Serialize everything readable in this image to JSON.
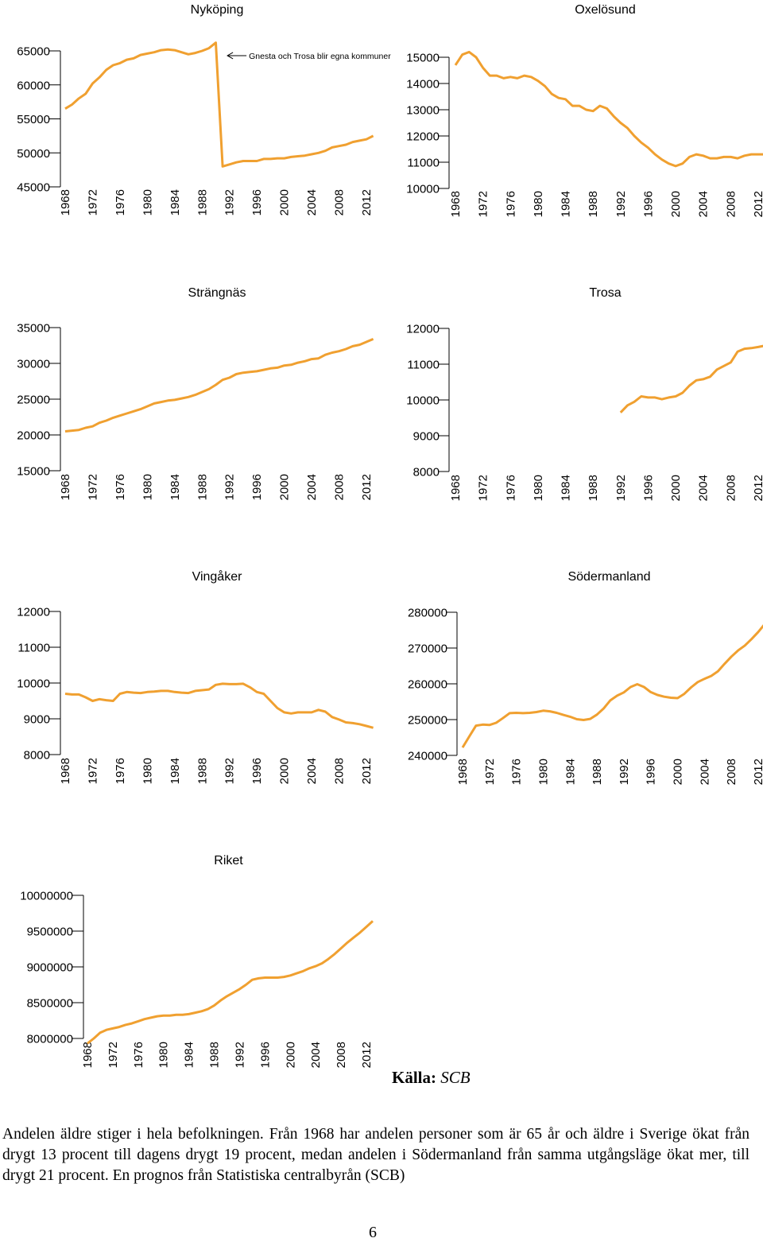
{
  "chart_data": [
    {
      "type": "line",
      "title": "Nyköping",
      "ylim": [
        45000,
        65000
      ],
      "yticks": [
        "65000",
        "60000",
        "55000",
        "50000",
        "45000"
      ],
      "xticks": [
        "1968",
        "1972",
        "1976",
        "1980",
        "1984",
        "1988",
        "1992",
        "1996",
        "2000",
        "2004",
        "2008",
        "2012"
      ],
      "grid": false,
      "color": "#F0A030",
      "annotation": "Gnesta och Trosa blir egna kommuner",
      "x": [
        1968,
        1969,
        1970,
        1971,
        1972,
        1973,
        1974,
        1975,
        1976,
        1977,
        1978,
        1979,
        1980,
        1981,
        1982,
        1983,
        1984,
        1985,
        1986,
        1987,
        1988,
        1989,
        1990,
        1991,
        1992,
        1993,
        1994,
        1995,
        1996,
        1997,
        1998,
        1999,
        2000,
        2001,
        2002,
        2003,
        2004,
        2005,
        2006,
        2007,
        2008,
        2009,
        2010,
        2011,
        2012,
        2013
      ],
      "y": [
        56500,
        57100,
        58000,
        58700,
        60200,
        61100,
        62200,
        62900,
        63200,
        63700,
        63900,
        64400,
        64600,
        64800,
        65100,
        65200,
        65100,
        64800,
        64500,
        64700,
        65000,
        65400,
        66200,
        48000,
        48300,
        48600,
        48800,
        48800,
        48800,
        49100,
        49100,
        49200,
        49200,
        49400,
        49500,
        49600,
        49800,
        50000,
        50300,
        50800,
        51000,
        51200,
        51600,
        51800,
        52000,
        52500
      ]
    },
    {
      "type": "line",
      "title": "Oxelösund",
      "ylim": [
        10000,
        15000
      ],
      "yticks": [
        "15000",
        "14000",
        "13000",
        "12000",
        "11000",
        "10000"
      ],
      "xticks": [
        "1968",
        "1972",
        "1976",
        "1980",
        "1984",
        "1988",
        "1992",
        "1996",
        "2000",
        "2004",
        "2008",
        "2012"
      ],
      "grid": false,
      "color": "#F0A030",
      "x": [
        1968,
        1969,
        1970,
        1971,
        1972,
        1973,
        1974,
        1975,
        1976,
        1977,
        1978,
        1979,
        1980,
        1981,
        1982,
        1983,
        1984,
        1985,
        1986,
        1987,
        1988,
        1989,
        1990,
        1991,
        1992,
        1993,
        1994,
        1995,
        1996,
        1997,
        1998,
        1999,
        2000,
        2001,
        2002,
        2003,
        2004,
        2005,
        2006,
        2007,
        2008,
        2009,
        2010,
        2011,
        2012,
        2013
      ],
      "y": [
        14700,
        15100,
        15200,
        15000,
        14600,
        14300,
        14300,
        14200,
        14250,
        14200,
        14300,
        14250,
        14100,
        13900,
        13600,
        13450,
        13400,
        13150,
        13150,
        13000,
        12950,
        13150,
        13050,
        12750,
        12500,
        12300,
        12000,
        11750,
        11550,
        11300,
        11100,
        10950,
        10850,
        10950,
        11200,
        11300,
        11250,
        11150,
        11150,
        11200,
        11200,
        11150,
        11250,
        11300,
        11300,
        11300
      ]
    },
    {
      "type": "line",
      "title": "Strängnäs",
      "ylim": [
        15000,
        35000
      ],
      "yticks": [
        "35000",
        "30000",
        "25000",
        "20000",
        "15000"
      ],
      "xticks": [
        "1968",
        "1972",
        "1976",
        "1980",
        "1984",
        "1988",
        "1992",
        "1996",
        "2000",
        "2004",
        "2008",
        "2012"
      ],
      "grid": false,
      "color": "#F0A030",
      "x": [
        1968,
        1969,
        1970,
        1971,
        1972,
        1973,
        1974,
        1975,
        1976,
        1977,
        1978,
        1979,
        1980,
        1981,
        1982,
        1983,
        1984,
        1985,
        1986,
        1987,
        1988,
        1989,
        1990,
        1991,
        1992,
        1993,
        1994,
        1995,
        1996,
        1997,
        1998,
        1999,
        2000,
        2001,
        2002,
        2003,
        2004,
        2005,
        2006,
        2007,
        2008,
        2009,
        2010,
        2011,
        2012,
        2013
      ],
      "y": [
        20500,
        20600,
        20700,
        21000,
        21200,
        21700,
        22000,
        22400,
        22700,
        23000,
        23300,
        23600,
        24000,
        24400,
        24600,
        24800,
        24900,
        25100,
        25300,
        25600,
        26000,
        26400,
        27000,
        27700,
        28000,
        28500,
        28700,
        28800,
        28900,
        29100,
        29300,
        29400,
        29700,
        29800,
        30100,
        30300,
        30600,
        30700,
        31200,
        31500,
        31700,
        32000,
        32400,
        32600,
        33000,
        33400
      ]
    },
    {
      "type": "line",
      "title": "Trosa",
      "ylim": [
        8000,
        12000
      ],
      "yticks": [
        "12000",
        "11000",
        "10000",
        "9000",
        "8000"
      ],
      "xticks": [
        "1968",
        "1972",
        "1976",
        "1980",
        "1984",
        "1988",
        "1992",
        "1996",
        "2000",
        "2004",
        "2008",
        "2012"
      ],
      "grid": false,
      "color": "#F0A030",
      "x": [
        1992,
        1993,
        1994,
        1995,
        1996,
        1997,
        1998,
        1999,
        2000,
        2001,
        2002,
        2003,
        2004,
        2005,
        2006,
        2007,
        2008,
        2009,
        2010,
        2011,
        2012,
        2013
      ],
      "y": [
        9650,
        9850,
        9950,
        10100,
        10070,
        10070,
        10020,
        10070,
        10100,
        10200,
        10400,
        10550,
        10580,
        10650,
        10850,
        10950,
        11050,
        11350,
        11430,
        11450,
        11480,
        11520
      ]
    },
    {
      "type": "line",
      "title": "Vingåker",
      "ylim": [
        8000,
        12000
      ],
      "yticks": [
        "12000",
        "11000",
        "10000",
        "9000",
        "8000"
      ],
      "xticks": [
        "1968",
        "1972",
        "1976",
        "1980",
        "1984",
        "1988",
        "1992",
        "1996",
        "2000",
        "2004",
        "2008",
        "2012"
      ],
      "grid": false,
      "color": "#F0A030",
      "x": [
        1968,
        1969,
        1970,
        1971,
        1972,
        1973,
        1974,
        1975,
        1976,
        1977,
        1978,
        1979,
        1980,
        1981,
        1982,
        1983,
        1984,
        1985,
        1986,
        1987,
        1988,
        1989,
        1990,
        1991,
        1992,
        1993,
        1994,
        1995,
        1996,
        1997,
        1998,
        1999,
        2000,
        2001,
        2002,
        2003,
        2004,
        2005,
        2006,
        2007,
        2008,
        2009,
        2010,
        2011,
        2012,
        2013
      ],
      "y": [
        9700,
        9680,
        9680,
        9600,
        9500,
        9550,
        9520,
        9500,
        9700,
        9750,
        9730,
        9720,
        9750,
        9760,
        9780,
        9780,
        9750,
        9730,
        9720,
        9780,
        9800,
        9820,
        9950,
        9980,
        9970,
        9970,
        9980,
        9880,
        9750,
        9700,
        9500,
        9300,
        9180,
        9150,
        9180,
        9180,
        9180,
        9250,
        9200,
        9050,
        8980,
        8900,
        8880,
        8850,
        8800,
        8750
      ]
    },
    {
      "type": "line",
      "title": "Södermanland",
      "ylim": [
        240000,
        280000
      ],
      "yticks": [
        "280000",
        "270000",
        "260000",
        "250000",
        "240000"
      ],
      "xticks": [
        "1968",
        "1972",
        "1976",
        "1980",
        "1984",
        "1988",
        "1992",
        "1996",
        "2000",
        "2004",
        "2008",
        "2012"
      ],
      "grid": false,
      "color": "#F0A030",
      "x": [
        1968,
        1969,
        1970,
        1971,
        1972,
        1973,
        1974,
        1975,
        1976,
        1977,
        1978,
        1979,
        1980,
        1981,
        1982,
        1983,
        1984,
        1985,
        1986,
        1987,
        1988,
        1989,
        1990,
        1991,
        1992,
        1993,
        1994,
        1995,
        1996,
        1997,
        1998,
        1999,
        2000,
        2001,
        2002,
        2003,
        2004,
        2005,
        2006,
        2007,
        2008,
        2009,
        2010,
        2011,
        2012,
        2013
      ],
      "y": [
        242200,
        245300,
        248300,
        248600,
        248500,
        249100,
        250400,
        251800,
        251900,
        251800,
        251900,
        252100,
        252500,
        252300,
        251900,
        251300,
        250800,
        250100,
        249900,
        250200,
        251400,
        253100,
        255400,
        256700,
        257600,
        259100,
        259900,
        259100,
        257700,
        256900,
        256400,
        256100,
        256000,
        257200,
        259000,
        260500,
        261400,
        262200,
        263500,
        265600,
        267600,
        269300,
        270700,
        272500,
        274500,
        276800
      ]
    },
    {
      "type": "line",
      "title": "Riket",
      "ylim": [
        8000000,
        10000000
      ],
      "yticks": [
        "10000000",
        "9500000",
        "9000000",
        "8500000",
        "8000000"
      ],
      "xticks": [
        "1968",
        "1972",
        "1976",
        "1980",
        "1984",
        "1988",
        "1992",
        "1996",
        "2000",
        "2004",
        "2008",
        "2012"
      ],
      "grid": false,
      "color": "#F0A030",
      "x": [
        1968,
        1969,
        1970,
        1971,
        1972,
        1973,
        1974,
        1975,
        1976,
        1977,
        1978,
        1979,
        1980,
        1981,
        1982,
        1983,
        1984,
        1985,
        1986,
        1987,
        1988,
        1989,
        1990,
        1991,
        1992,
        1993,
        1994,
        1995,
        1996,
        1997,
        1998,
        1999,
        2000,
        2001,
        2002,
        2003,
        2004,
        2005,
        2006,
        2007,
        2008,
        2009,
        2010,
        2011,
        2012,
        2013
      ],
      "y": [
        7930000,
        8000000,
        8080000,
        8120000,
        8140000,
        8160000,
        8190000,
        8210000,
        8240000,
        8270000,
        8290000,
        8310000,
        8320000,
        8320000,
        8330000,
        8330000,
        8340000,
        8360000,
        8380000,
        8410000,
        8460000,
        8530000,
        8590000,
        8640000,
        8690000,
        8750000,
        8820000,
        8840000,
        8850000,
        8850000,
        8850000,
        8860000,
        8880000,
        8910000,
        8940000,
        8980000,
        9010000,
        9050000,
        9110000,
        9180000,
        9260000,
        9340000,
        9410000,
        9480000,
        9560000,
        9640000
      ]
    }
  ],
  "source": {
    "label": "Källa:",
    "value": "SCB"
  },
  "body_text": "Andelen äldre stiger i hela befolkningen. Från 1968 har andelen personer som är 65 år och äldre i Sverige ökat från drygt 13 procent till dagens drygt 19 procent, medan andelen i Södermanland från samma utgångsläge ökat mer, till drygt 21 procent.  En prognos från Statistiska centralbyrån (SCB)",
  "page_number": "6"
}
